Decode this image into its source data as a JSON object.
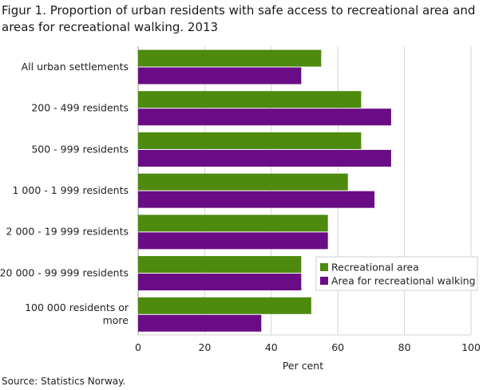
{
  "title": "Figur 1. Proportion of urban residents with safe access to recreational area and areas for recreational walking. 2013",
  "source": "Source: Statistics Norway.",
  "colors": {
    "recreational_area": "#4d8a0e",
    "recreational_walking": "#6a0c85",
    "grid": "#d6d6d6",
    "axis": "#999999"
  },
  "chart_data": {
    "type": "bar",
    "orientation": "horizontal",
    "title": "Figur 1. Proportion of urban residents with safe access to recreational area and areas for recreational walking. 2013",
    "xlabel": "Per cent",
    "ylabel": "",
    "xlim": [
      0,
      100
    ],
    "xticks": [
      0,
      20,
      40,
      60,
      80,
      100
    ],
    "grid": true,
    "legend_position": "bottom-right",
    "categories": [
      [
        "All urban settlements"
      ],
      [
        "200 - 499 residents"
      ],
      [
        "500 - 999 residents"
      ],
      [
        "1 000 - 1 999 residents"
      ],
      [
        "2 000 - 19 999 residents"
      ],
      [
        "20 000 - 99 999 residents"
      ],
      [
        "100 000 residents or",
        "more"
      ]
    ],
    "series": [
      {
        "name": "Recreational area",
        "values": [
          55,
          67,
          67,
          63,
          57,
          49,
          52
        ]
      },
      {
        "name": "Area for recreational walking",
        "values": [
          49,
          76,
          76,
          71,
          57,
          49,
          37
        ]
      }
    ]
  }
}
